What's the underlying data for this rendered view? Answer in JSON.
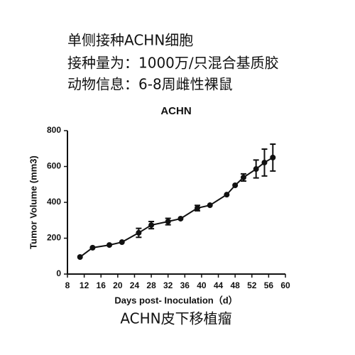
{
  "header": {
    "lines": [
      "单侧接种ACHN细胞",
      "接种量为：1000万/只混合基质胶",
      "动物信息：6-8周雌性裸鼠"
    ]
  },
  "chart_data": {
    "type": "line",
    "title": "ACHN",
    "x_label": "Days post- Inoculation（d）",
    "y_label": "Tumor Volume (mm3)",
    "x": [
      11,
      14,
      18,
      21,
      25,
      28,
      32,
      35,
      39,
      42,
      46,
      48,
      50,
      53,
      55,
      57
    ],
    "series": [
      {
        "color": "#111111",
        "values": [
          95,
          147,
          162,
          178,
          230,
          273,
          293,
          309,
          368,
          384,
          443,
          495,
          539,
          586,
          622,
          650
        ],
        "errors": [
          null,
          null,
          null,
          null,
          25,
          20,
          18,
          null,
          15,
          null,
          null,
          null,
          20,
          50,
          75,
          75
        ]
      }
    ],
    "xlim": [
      8,
      60
    ],
    "xticks": [
      8,
      12,
      16,
      20,
      24,
      28,
      32,
      36,
      40,
      44,
      48,
      52,
      56,
      60
    ],
    "ylim": [
      0,
      800
    ],
    "yticks": [
      0,
      200,
      400,
      600,
      800
    ]
  },
  "caption": "ACHN皮下移植瘤"
}
